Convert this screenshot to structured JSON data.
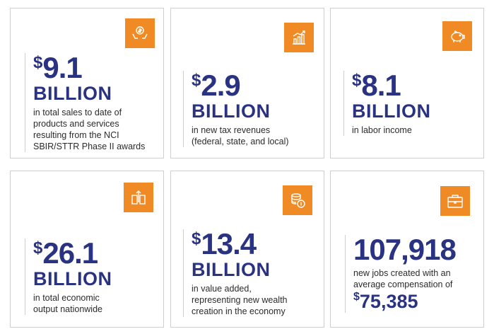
{
  "cards": [
    {
      "dollar": "$",
      "amount": "9.1",
      "unit": "BILLION",
      "icon": "money-hands-icon",
      "description": "in total sales to date of\nproducts and services\nresulting from the NCI\nSBIR/STTR Phase II awards"
    },
    {
      "dollar": "$",
      "amount": "2.9",
      "unit": "BILLION",
      "icon": "growth-chart-icon",
      "description": "in new tax revenues\n(federal, state, and local)"
    },
    {
      "dollar": "$",
      "amount": "8.1",
      "unit": "BILLION",
      "icon": "piggy-bank-icon",
      "description": "in labor income"
    },
    {
      "dollar": "$",
      "amount": "26.1",
      "unit": "BILLION",
      "icon": "building-arrow-icon",
      "description": "in total economic\noutput nationwide"
    },
    {
      "dollar": "$",
      "amount": "13.4",
      "unit": "BILLION",
      "icon": "coin-stack-icon",
      "description": "in value added,\nrepresenting new wealth\ncreation in the economy"
    },
    {
      "amount": "107,918",
      "icon": "briefcase-icon",
      "description": "new jobs created with an\naverage compensation of",
      "compensation_dollar": "$",
      "compensation": "75,385"
    }
  ],
  "colors": {
    "accent": "#f08a24",
    "heading": "#2a3282",
    "border": "#cfcfcf"
  }
}
